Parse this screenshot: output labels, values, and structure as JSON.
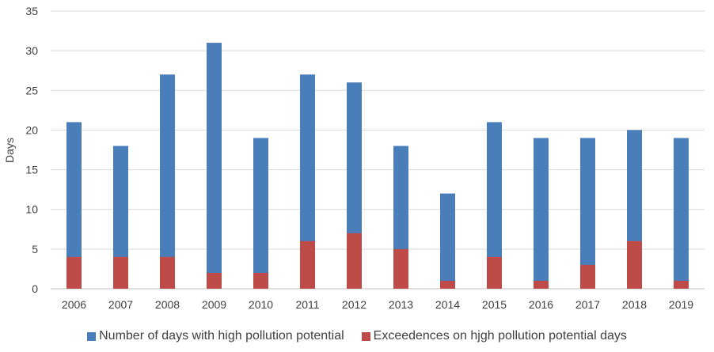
{
  "chart_data": {
    "type": "bar",
    "stacking": "overlap",
    "categories": [
      "2006",
      "2007",
      "2008",
      "2009",
      "2010",
      "2011",
      "2012",
      "2013",
      "2014",
      "2015",
      "2016",
      "2017",
      "2018",
      "2019"
    ],
    "series": [
      {
        "name": "Number of days with high pollution potential",
        "color": "#4a7ebb",
        "values": [
          21,
          18,
          27,
          31,
          19,
          27,
          26,
          18,
          12,
          21,
          19,
          19,
          20,
          19
        ]
      },
      {
        "name": "Exceedences on hjgh pollution potential days",
        "color": "#be4b48",
        "values": [
          4,
          4,
          4,
          2,
          2,
          6,
          7,
          5,
          1,
          4,
          1,
          3,
          6,
          1
        ]
      }
    ],
    "ylabel": "Days",
    "ylim": [
      0,
      35
    ],
    "yticks": [
      0,
      5,
      10,
      15,
      20,
      25,
      30,
      35
    ],
    "grid": true,
    "legend_position": "bottom"
  }
}
